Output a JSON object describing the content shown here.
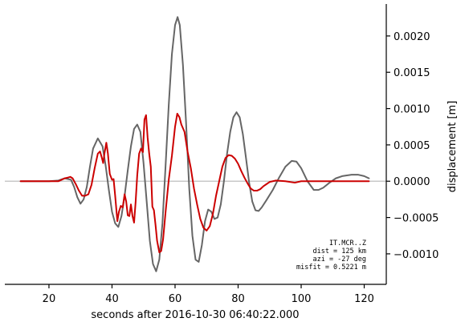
{
  "chart_data": {
    "type": "line",
    "xlabel": "seconds after 2016-10-30 06:40:22.000",
    "ylabel": "displacement [m]",
    "xlim": [
      6,
      127
    ],
    "ylim": [
      -0.00142,
      0.00244
    ],
    "x_ticks": [
      20,
      40,
      60,
      80,
      100,
      120
    ],
    "y_ticks": [
      -0.001,
      -0.0005,
      0.0,
      0.0005,
      0.001,
      0.0015,
      0.002
    ],
    "y_tick_labels": [
      "−0.0010",
      "−0.0005",
      "0.0000",
      "0.0005",
      "0.0010",
      "0.0015",
      "0.0020"
    ],
    "y_axis_side": "right",
    "grid": false,
    "zero_line": true,
    "annotation": [
      "IT.MCR..Z",
      "dist = 125 km",
      "azi = -27 deg",
      "misfit = 0.5221 m"
    ],
    "series": [
      {
        "color": "#666666",
        "points": [
          [
            11,
            0
          ],
          [
            20,
            0
          ],
          [
            23,
            1e-05
          ],
          [
            25,
            4e-05
          ],
          [
            26,
            3e-05
          ],
          [
            27,
            2e-05
          ],
          [
            28,
            -8e-05
          ],
          [
            29,
            -0.00022
          ],
          [
            30,
            -0.00031
          ],
          [
            31,
            -0.00025
          ],
          [
            32,
            -8e-05
          ],
          [
            33,
            0.0002
          ],
          [
            34,
            0.00045
          ],
          [
            35.5,
            0.00059
          ],
          [
            37,
            0.00048
          ],
          [
            38,
            0.00021
          ],
          [
            39,
            -0.00012
          ],
          [
            40,
            -0.00042
          ],
          [
            41,
            -0.00058
          ],
          [
            42,
            -0.00063
          ],
          [
            43,
            -0.00048
          ],
          [
            44,
            -0.0002
          ],
          [
            45,
            0.00015
          ],
          [
            46,
            0.00048
          ],
          [
            47,
            0.00072
          ],
          [
            48,
            0.00078
          ],
          [
            49,
            0.00068
          ],
          [
            50,
            0.00025
          ],
          [
            51,
            -0.00028
          ],
          [
            52,
            -0.00082
          ],
          [
            53,
            -0.00114
          ],
          [
            54,
            -0.00124
          ],
          [
            55,
            -0.00108
          ],
          [
            56,
            -0.00058
          ],
          [
            57,
            0.00022
          ],
          [
            58,
            0.00105
          ],
          [
            59,
            0.00175
          ],
          [
            60,
            0.00215
          ],
          [
            60.8,
            0.00226
          ],
          [
            61.5,
            0.00215
          ],
          [
            62.5,
            0.0016
          ],
          [
            63.5,
            0.0008
          ],
          [
            64.5,
            -0.0001
          ],
          [
            65.5,
            -0.00075
          ],
          [
            66.5,
            -0.00108
          ],
          [
            67.5,
            -0.00111
          ],
          [
            68.5,
            -0.00088
          ],
          [
            69.5,
            -0.00055
          ],
          [
            70.5,
            -0.00039
          ],
          [
            71.5,
            -0.00042
          ],
          [
            72.5,
            -0.00052
          ],
          [
            73.5,
            -0.0005
          ],
          [
            74.5,
            -0.00032
          ],
          [
            75.5,
            0.0
          ],
          [
            76.5,
            0.00038
          ],
          [
            77.5,
            0.00068
          ],
          [
            78.5,
            0.00088
          ],
          [
            79.5,
            0.00095
          ],
          [
            80.5,
            0.00088
          ],
          [
            81.5,
            0.00065
          ],
          [
            82.5,
            0.00032
          ],
          [
            83.5,
            -2e-05
          ],
          [
            84.5,
            -0.00028
          ],
          [
            85.5,
            -0.0004
          ],
          [
            86.5,
            -0.00041
          ],
          [
            87.5,
            -0.00036
          ],
          [
            89,
            -0.00026
          ],
          [
            91,
            -0.00012
          ],
          [
            93,
            5e-05
          ],
          [
            95,
            0.0002
          ],
          [
            97,
            0.00028
          ],
          [
            98.5,
            0.00027
          ],
          [
            100,
            0.00018
          ],
          [
            102,
            0.0
          ],
          [
            104,
            -0.00012
          ],
          [
            105.5,
            -0.00012
          ],
          [
            107,
            -9e-05
          ],
          [
            109,
            -2e-05
          ],
          [
            111,
            4e-05
          ],
          [
            113,
            7e-05
          ],
          [
            116,
            9e-05
          ],
          [
            118,
            9e-05
          ],
          [
            120,
            7e-05
          ],
          [
            121.5,
            4e-05
          ]
        ]
      },
      {
        "color": "#cc0000",
        "points": [
          [
            11,
            0
          ],
          [
            20,
            0
          ],
          [
            23,
            0.0
          ],
          [
            24,
            2e-05
          ],
          [
            25,
            4e-05
          ],
          [
            26,
            5e-05
          ],
          [
            26.8,
            6e-05
          ],
          [
            27.5,
            4e-05
          ],
          [
            28.5,
            -4e-05
          ],
          [
            29.5,
            -0.00013
          ],
          [
            30.5,
            -0.0002
          ],
          [
            31.5,
            -0.0002
          ],
          [
            32.5,
            -0.00018
          ],
          [
            33.5,
            -5e-05
          ],
          [
            34.5,
            0.00018
          ],
          [
            35.5,
            0.00038
          ],
          [
            36.2,
            0.00041
          ],
          [
            36.8,
            0.00032
          ],
          [
            37.2,
            0.00025
          ],
          [
            37.6,
            0.00038
          ],
          [
            38.2,
            0.00053
          ],
          [
            38.7,
            0.00038
          ],
          [
            39.3,
            0.0001
          ],
          [
            40,
            2e-05
          ],
          [
            40.5,
            3e-05
          ],
          [
            41,
            -0.0002
          ],
          [
            41.7,
            -0.00055
          ],
          [
            42.2,
            -0.00042
          ],
          [
            42.8,
            -0.00034
          ],
          [
            43.4,
            -0.00036
          ],
          [
            44,
            -0.00018
          ],
          [
            44.5,
            -0.00028
          ],
          [
            45,
            -0.00047
          ],
          [
            45.5,
            -0.00048
          ],
          [
            46,
            -0.00032
          ],
          [
            46.5,
            -0.00048
          ],
          [
            47,
            -0.00057
          ],
          [
            47.5,
            -0.00028
          ],
          [
            48,
            8e-05
          ],
          [
            48.6,
            0.00038
          ],
          [
            49.2,
            0.00045
          ],
          [
            49.8,
            0.0004
          ],
          [
            50.3,
            0.00085
          ],
          [
            50.8,
            0.00091
          ],
          [
            51.3,
            0.0006
          ],
          [
            51.8,
            0.00038
          ],
          [
            52.3,
            0.0002
          ],
          [
            52.8,
            -0.00035
          ],
          [
            53.3,
            -0.0004
          ],
          [
            53.8,
            -0.0006
          ],
          [
            54.3,
            -0.00082
          ],
          [
            55,
            -0.00098
          ],
          [
            55.6,
            -0.00096
          ],
          [
            56.2,
            -0.0008
          ],
          [
            57,
            -0.00042
          ],
          [
            58,
            2e-05
          ],
          [
            59,
            0.00035
          ],
          [
            60,
            0.00075
          ],
          [
            60.7,
            0.00093
          ],
          [
            61.4,
            0.00088
          ],
          [
            62,
            0.00078
          ],
          [
            63,
            0.00068
          ],
          [
            64,
            0.0004
          ],
          [
            65,
            0.00018
          ],
          [
            66,
            -0.0001
          ],
          [
            67,
            -0.00032
          ],
          [
            68,
            -0.00052
          ],
          [
            69,
            -0.00064
          ],
          [
            70,
            -0.00068
          ],
          [
            71,
            -0.00062
          ],
          [
            72,
            -0.00045
          ],
          [
            73,
            -0.0002
          ],
          [
            74,
            0.0
          ],
          [
            75,
            0.0002
          ],
          [
            76,
            0.00032
          ],
          [
            77,
            0.00036
          ],
          [
            78,
            0.00035
          ],
          [
            79,
            0.00031
          ],
          [
            80,
            0.00024
          ],
          [
            81,
            0.00014
          ],
          [
            82,
            5e-05
          ],
          [
            83,
            -3e-05
          ],
          [
            84,
            -0.0001
          ],
          [
            85,
            -0.00013
          ],
          [
            86,
            -0.00013
          ],
          [
            87,
            -0.00011
          ],
          [
            88,
            -7e-05
          ],
          [
            89,
            -4e-05
          ],
          [
            90,
            -1e-05
          ],
          [
            92,
            1e-05
          ],
          [
            95,
            0.0
          ],
          [
            98,
            -2e-05
          ],
          [
            100,
            0.0
          ],
          [
            105,
            0.0
          ],
          [
            110,
            0.0
          ],
          [
            115,
            0.0
          ],
          [
            120,
            0.0
          ],
          [
            121.5,
            0.0
          ]
        ]
      }
    ]
  }
}
